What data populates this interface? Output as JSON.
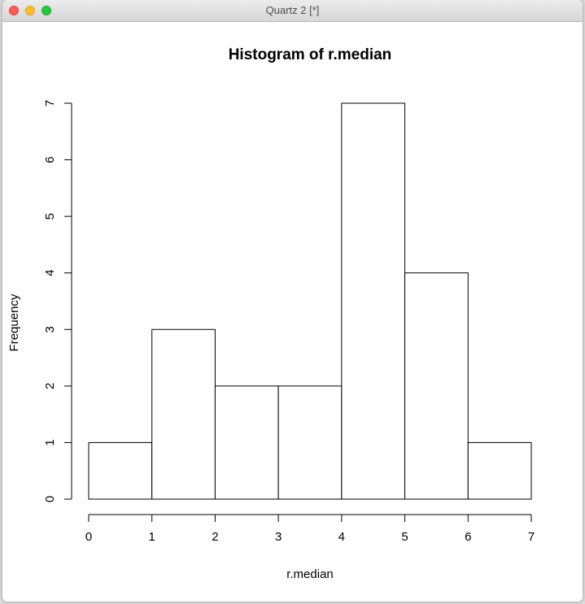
{
  "window": {
    "title": "Quartz 2 [*]"
  },
  "chart_data": {
    "type": "bar",
    "title": "Histogram of r.median",
    "xlabel": "r.median",
    "ylabel": "Frequency",
    "bins": [
      {
        "from": 0,
        "to": 1,
        "count": 1
      },
      {
        "from": 1,
        "to": 2,
        "count": 3
      },
      {
        "from": 2,
        "to": 3,
        "count": 2
      },
      {
        "from": 3,
        "to": 4,
        "count": 2
      },
      {
        "from": 4,
        "to": 5,
        "count": 7
      },
      {
        "from": 5,
        "to": 6,
        "count": 4
      },
      {
        "from": 6,
        "to": 7,
        "count": 1
      }
    ],
    "xlim": [
      0,
      7
    ],
    "ylim": [
      0,
      7
    ],
    "xticks": [
      "0",
      "1",
      "2",
      "3",
      "4",
      "5",
      "6",
      "7"
    ],
    "yticks": [
      "0",
      "1",
      "2",
      "3",
      "4",
      "5",
      "6",
      "7"
    ],
    "grid": false,
    "bar_fill": "#ffffff",
    "bar_stroke": "#000000"
  }
}
